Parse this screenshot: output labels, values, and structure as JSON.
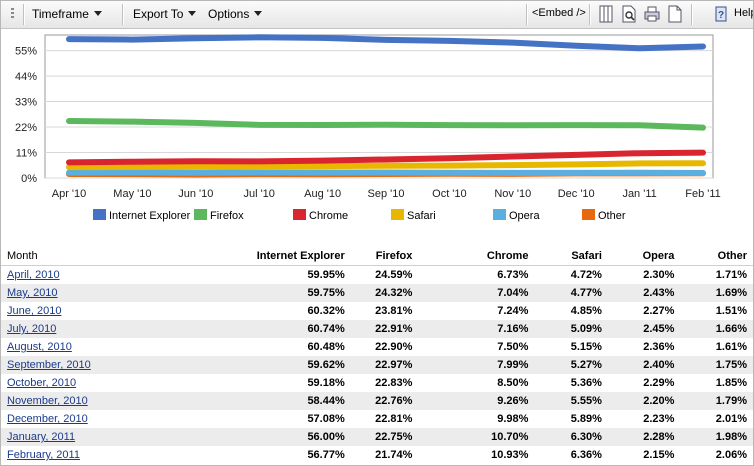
{
  "toolbar": {
    "timeframe_label": "Timeframe",
    "export_label": "Export To",
    "options_label": "Options",
    "embed_label": "<Embed />",
    "help_label": "Help"
  },
  "chart_data": {
    "type": "line",
    "categories": [
      "Apr '10",
      "May '10",
      "Jun '10",
      "Jul '10",
      "Aug '10",
      "Sep '10",
      "Oct '10",
      "Nov '10",
      "Dec '10",
      "Jan '11",
      "Feb '11"
    ],
    "ylim": [
      0,
      60
    ],
    "yticks": [
      0,
      11,
      22,
      33,
      44,
      55
    ],
    "ytick_labels": [
      "0%",
      "11%",
      "22%",
      "33%",
      "44%",
      "55%"
    ],
    "grid": true,
    "legend_position": "bottom",
    "series": [
      {
        "name": "Internet Explorer",
        "color": "#4472c4",
        "values": [
          59.95,
          59.75,
          60.32,
          60.74,
          60.48,
          59.62,
          59.18,
          58.44,
          57.08,
          56.0,
          56.77
        ]
      },
      {
        "name": "Firefox",
        "color": "#5cb85c",
        "values": [
          24.59,
          24.32,
          23.81,
          22.91,
          22.9,
          22.97,
          22.83,
          22.76,
          22.81,
          22.75,
          21.74
        ]
      },
      {
        "name": "Chrome",
        "color": "#d9262e",
        "values": [
          6.73,
          7.04,
          7.24,
          7.16,
          7.5,
          7.99,
          8.5,
          9.26,
          9.98,
          10.7,
          10.93
        ]
      },
      {
        "name": "Safari",
        "color": "#e8b800",
        "values": [
          4.72,
          4.77,
          4.85,
          5.09,
          5.15,
          5.27,
          5.36,
          5.55,
          5.89,
          6.3,
          6.36
        ]
      },
      {
        "name": "Opera",
        "color": "#5aaee0",
        "values": [
          2.3,
          2.43,
          2.27,
          2.45,
          2.36,
          2.4,
          2.29,
          2.2,
          2.23,
          2.28,
          2.15
        ]
      },
      {
        "name": "Other",
        "color": "#e8690c",
        "values": [
          1.71,
          1.69,
          1.51,
          1.66,
          1.61,
          1.75,
          1.85,
          1.79,
          2.01,
          1.98,
          2.06
        ]
      }
    ]
  },
  "table": {
    "headers": [
      "Month",
      "Internet Explorer",
      "Firefox",
      "Chrome",
      "Safari",
      "Opera",
      "Other"
    ],
    "rows": [
      [
        "April, 2010",
        "59.95%",
        "24.59%",
        "6.73%",
        "4.72%",
        "2.30%",
        "1.71%"
      ],
      [
        "May, 2010",
        "59.75%",
        "24.32%",
        "7.04%",
        "4.77%",
        "2.43%",
        "1.69%"
      ],
      [
        "June, 2010",
        "60.32%",
        "23.81%",
        "7.24%",
        "4.85%",
        "2.27%",
        "1.51%"
      ],
      [
        "July, 2010",
        "60.74%",
        "22.91%",
        "7.16%",
        "5.09%",
        "2.45%",
        "1.66%"
      ],
      [
        "August, 2010",
        "60.48%",
        "22.90%",
        "7.50%",
        "5.15%",
        "2.36%",
        "1.61%"
      ],
      [
        "September, 2010",
        "59.62%",
        "22.97%",
        "7.99%",
        "5.27%",
        "2.40%",
        "1.75%"
      ],
      [
        "October, 2010",
        "59.18%",
        "22.83%",
        "8.50%",
        "5.36%",
        "2.29%",
        "1.85%"
      ],
      [
        "November, 2010",
        "58.44%",
        "22.76%",
        "9.26%",
        "5.55%",
        "2.20%",
        "1.79%"
      ],
      [
        "December, 2010",
        "57.08%",
        "22.81%",
        "9.98%",
        "5.89%",
        "2.23%",
        "2.01%"
      ],
      [
        "January, 2011",
        "56.00%",
        "22.75%",
        "10.70%",
        "6.30%",
        "2.28%",
        "1.98%"
      ],
      [
        "February, 2011",
        "56.77%",
        "21.74%",
        "10.93%",
        "6.36%",
        "2.15%",
        "2.06%"
      ]
    ]
  }
}
